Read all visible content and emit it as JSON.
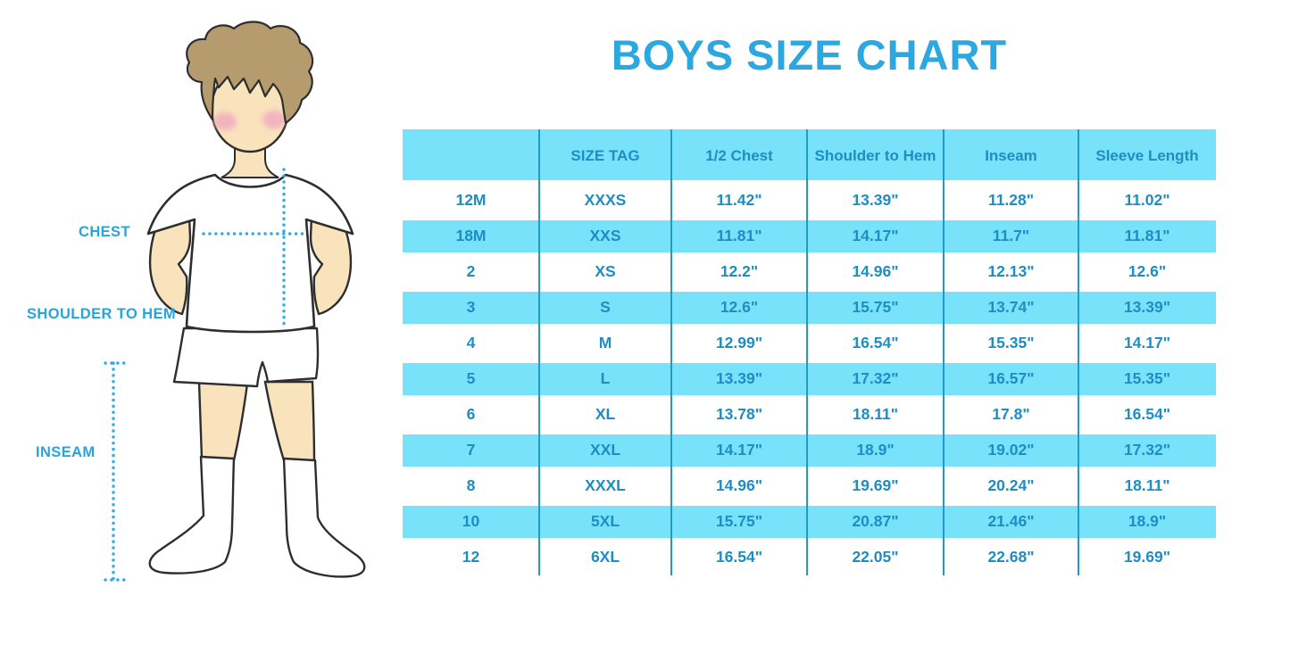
{
  "title": "BOYS SIZE CHART",
  "figure": {
    "description": "line-art illustration of a boy in white t-shirt, shorts and knee socks used as measurement guide",
    "labels": {
      "chest": "CHEST",
      "shoulder_to_hem": "SHOULDER TO HEM",
      "inseam": "INSEAM"
    }
  },
  "colors": {
    "title_text": "#2CA7DF",
    "table_text": "#1E8DC2",
    "row_stripe": "#79E2FB",
    "column_divider": "#2199CB",
    "measure_dots": "#2FACE4",
    "skin": "#F8E3BD",
    "hair": "#B59B6E"
  },
  "chart_data": {
    "type": "table",
    "title": "BOYS SIZE CHART",
    "columns": [
      "",
      "SIZE TAG",
      "1/2 Chest",
      "Shoulder to Hem",
      "Inseam",
      "Sleeve Length"
    ],
    "rows": [
      [
        "12M",
        "XXXS",
        "11.42\"",
        "13.39\"",
        "11.28\"",
        "11.02\""
      ],
      [
        "18M",
        "XXS",
        "11.81\"",
        "14.17\"",
        "11.7\"",
        "11.81\""
      ],
      [
        "2",
        "XS",
        "12.2\"",
        "14.96\"",
        "12.13\"",
        "12.6\""
      ],
      [
        "3",
        "S",
        "12.6\"",
        "15.75\"",
        "13.74\"",
        "13.39\""
      ],
      [
        "4",
        "M",
        "12.99\"",
        "16.54\"",
        "15.35\"",
        "14.17\""
      ],
      [
        "5",
        "L",
        "13.39\"",
        "17.32\"",
        "16.57\"",
        "15.35\""
      ],
      [
        "6",
        "XL",
        "13.78\"",
        "18.11\"",
        "17.8\"",
        "16.54\""
      ],
      [
        "7",
        "XXL",
        "14.17\"",
        "18.9\"",
        "19.02\"",
        "17.32\""
      ],
      [
        "8",
        "XXXL",
        "14.96\"",
        "19.69\"",
        "20.24\"",
        "18.11\""
      ],
      [
        "10",
        "5XL",
        "15.75\"",
        "20.87\"",
        "21.46\"",
        "18.9\""
      ],
      [
        "12",
        "6XL",
        "16.54\"",
        "22.05\"",
        "22.68\"",
        "19.69\""
      ]
    ],
    "layout": {
      "striping": "header and every even data row (18M, 3, 5, 7, 10) on light-blue bands, others white",
      "grid": "vertical column dividers only, no outer border"
    }
  }
}
